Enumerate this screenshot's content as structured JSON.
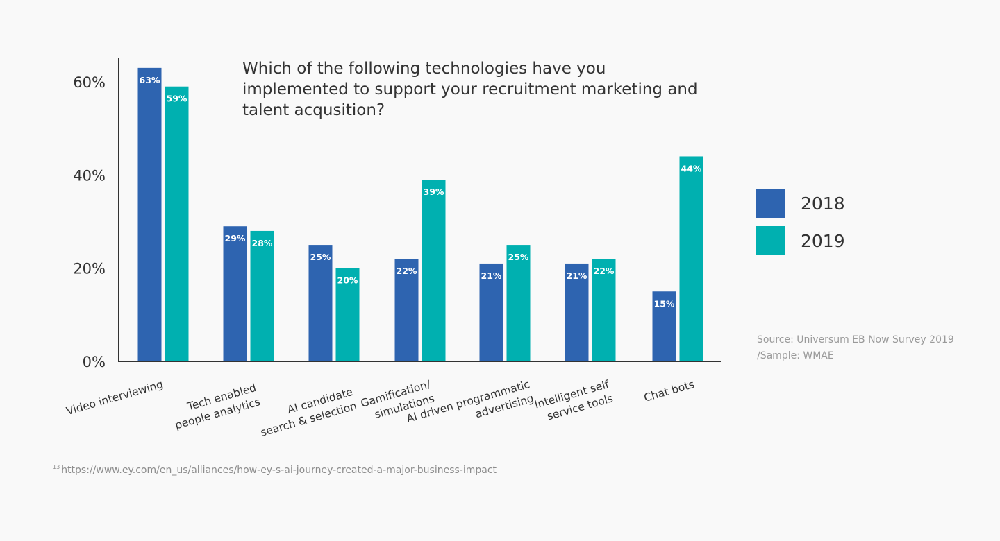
{
  "chart_data": {
    "type": "bar",
    "title": "Which of the following technologies have you\nimplemented to support your recruitment marketing and\ntalent acqusition?",
    "xlabel": "",
    "ylabel": "",
    "categories": [
      [
        "Video interviewing"
      ],
      [
        "Tech enabled",
        "people analytics"
      ],
      [
        "AI candidate",
        "search & selection"
      ],
      [
        "Gamification/",
        "simulations"
      ],
      [
        "AI driven programmatic",
        "advertising"
      ],
      [
        "Intelligent self",
        "service tools"
      ],
      [
        "Chat bots"
      ]
    ],
    "series": [
      {
        "name": "2018",
        "color": "#2e64b0",
        "values": [
          63,
          29,
          25,
          22,
          21,
          21,
          15
        ],
        "labels": [
          "63%",
          "29%",
          "25%",
          "22%",
          "21%",
          "21%",
          "15%"
        ]
      },
      {
        "name": "2019",
        "color": "#00b0b0",
        "values": [
          59,
          28,
          20,
          39,
          25,
          22,
          44
        ],
        "labels": [
          "59%",
          "28%",
          "20%",
          "39%",
          "25%",
          "22%",
          "44%"
        ]
      }
    ],
    "ylim": [
      0,
      60
    ],
    "yticks": [
      0,
      20,
      40,
      60
    ],
    "ytick_labels": [
      "0%",
      "20%",
      "40%",
      "60%"
    ],
    "grid": false,
    "legend": "right"
  },
  "source": {
    "line1": "Source: Universum EB Now Survey 2019",
    "line2": "/Sample: WMAE"
  },
  "footnote": {
    "number": "13",
    "text": "https://www.ey.com/en_us/alliances/how-ey-s-ai-journey-created-a-major-business-impact"
  },
  "colors": {
    "axis": "#333333",
    "background": "#f9f9f9"
  }
}
